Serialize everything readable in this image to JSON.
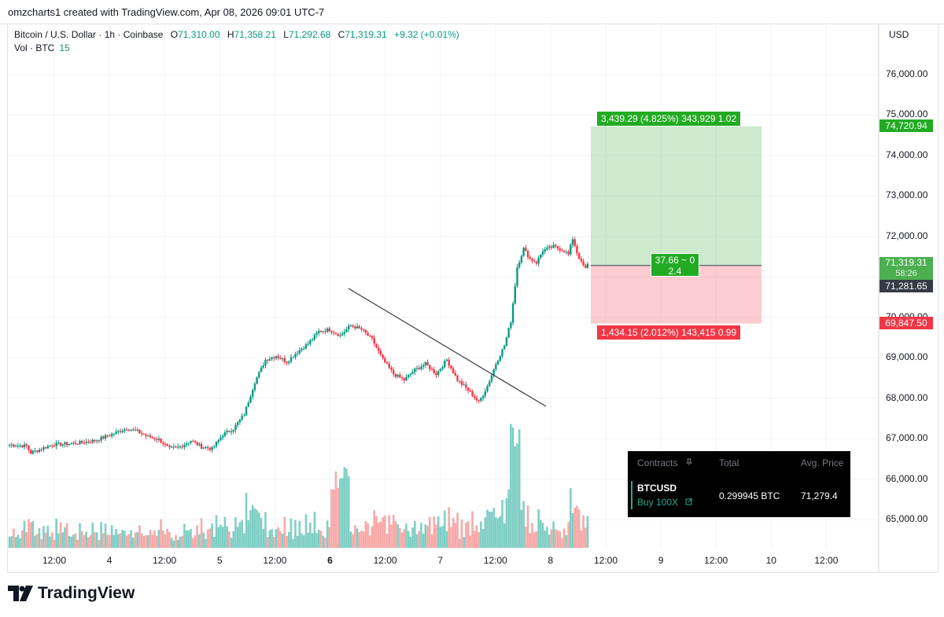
{
  "header": {
    "caption": "omzcharts1 created with TradingView.com, Apr 08, 2026 09:01 UTC-7"
  },
  "legend": {
    "symbol": "Bitcoin / U.S. Dollar · 1h · Coinbase",
    "o_label": "O",
    "o": "71,310.00",
    "h_label": "H",
    "h": "71,358.21",
    "l_label": "L",
    "l": "71,292.68",
    "c_label": "C",
    "c": "71,319.31",
    "change": "+9.32 (+0.01%)",
    "vol_label": "Vol · BTC",
    "vol": "15"
  },
  "currency": "USD",
  "colors": {
    "up": "#089981",
    "down": "#f23645",
    "profit": "#22ab22",
    "loss": "#f23645",
    "vol_up": "#7fcfc5",
    "vol_down": "#f7a9a7"
  },
  "price_tags": {
    "tp": "74,720.94",
    "last": "71,319.31",
    "countdown": "58:26",
    "entry": "71,281.65",
    "sl": "69,847.50"
  },
  "position": {
    "tp_label": "3,439.29 (4.825%) 343,929 1.02",
    "sl_label": "1,434.15 (2.012%) 143,415 0.99",
    "entry_line1": "37.66 ~ 0",
    "entry_line2": "2.4"
  },
  "panel": {
    "col_contracts": "Contracts",
    "col_total": "Total",
    "col_avg": "Avg. Price",
    "symbol": "BTCUSD",
    "side": "Buy 100X",
    "total": "0.299945 BTC",
    "avg_price": "71,279.4",
    "pin_icon": "pin-icon",
    "edit_icon": "edit-icon"
  },
  "footer": {
    "brand": "TradingView",
    "logo_icon": "tradingview-logo-icon"
  },
  "chart_data": {
    "type": "candlestick",
    "y_axis_ticks": [
      "65,000.00",
      "66,000.00",
      "67,000.00",
      "68,000.00",
      "69,000.00",
      "70,000.00",
      "71,000.00",
      "72,000.00",
      "73,000.00",
      "74,000.00",
      "75,000.00",
      "76,000.00"
    ],
    "ylim": [
      64200,
      77000
    ],
    "x_axis_ticks": [
      {
        "label": "12:00",
        "bold": false
      },
      {
        "label": "4",
        "bold": false
      },
      {
        "label": "12:00",
        "bold": false
      },
      {
        "label": "5",
        "bold": false
      },
      {
        "label": "12:00",
        "bold": false
      },
      {
        "label": "6",
        "bold": true
      },
      {
        "label": "12:00",
        "bold": false
      },
      {
        "label": "7",
        "bold": false
      },
      {
        "label": "12:00",
        "bold": false
      },
      {
        "label": "8",
        "bold": false
      },
      {
        "label": "12:00",
        "bold": false
      },
      {
        "label": "9",
        "bold": false
      },
      {
        "label": "12:00",
        "bold": false
      },
      {
        "label": "10",
        "bold": false
      },
      {
        "label": "12:00",
        "bold": false
      }
    ],
    "close_keyframes": [
      [
        0,
        66850
      ],
      [
        8,
        66820
      ],
      [
        10,
        66650
      ],
      [
        20,
        66850
      ],
      [
        30,
        66880
      ],
      [
        40,
        66950
      ],
      [
        45,
        67050
      ],
      [
        50,
        67150
      ],
      [
        55,
        67250
      ],
      [
        60,
        67180
      ],
      [
        65,
        67050
      ],
      [
        70,
        66980
      ],
      [
        75,
        66750
      ],
      [
        80,
        66800
      ],
      [
        85,
        66950
      ],
      [
        90,
        66800
      ],
      [
        95,
        66750
      ],
      [
        100,
        67100
      ],
      [
        105,
        67250
      ],
      [
        110,
        67600
      ],
      [
        115,
        68400
      ],
      [
        120,
        68950
      ],
      [
        125,
        69050
      ],
      [
        130,
        68900
      ],
      [
        135,
        69150
      ],
      [
        140,
        69350
      ],
      [
        145,
        69650
      ],
      [
        150,
        69700
      ],
      [
        155,
        69550
      ],
      [
        160,
        69800
      ],
      [
        165,
        69700
      ],
      [
        170,
        69450
      ],
      [
        175,
        68950
      ],
      [
        180,
        68600
      ],
      [
        185,
        68450
      ],
      [
        190,
        68700
      ],
      [
        195,
        68850
      ],
      [
        200,
        68600
      ],
      [
        205,
        68950
      ],
      [
        210,
        68450
      ],
      [
        215,
        68200
      ],
      [
        220,
        67900
      ],
      [
        224,
        68300
      ],
      [
        228,
        68850
      ],
      [
        232,
        69300
      ],
      [
        235,
        69900
      ],
      [
        238,
        71250
      ],
      [
        241,
        71700
      ],
      [
        244,
        71450
      ],
      [
        247,
        71350
      ],
      [
        250,
        71650
      ],
      [
        255,
        71750
      ],
      [
        260,
        71650
      ],
      [
        262,
        71550
      ],
      [
        264,
        71950
      ],
      [
        266,
        71600
      ],
      [
        268,
        71350
      ],
      [
        270,
        71200
      ],
      [
        271,
        71319
      ]
    ],
    "candle_count": 272,
    "last_close": 71319.31,
    "position": {
      "entry": 71281.65,
      "take_profit": 74720.94,
      "stop_loss": 69847.5
    },
    "trendline": [
      [
        70800
      ],
      [
        67800
      ]
    ],
    "volume": {
      "peak_btc_unit": 1.0,
      "description": "volume histogram bars below price"
    }
  }
}
